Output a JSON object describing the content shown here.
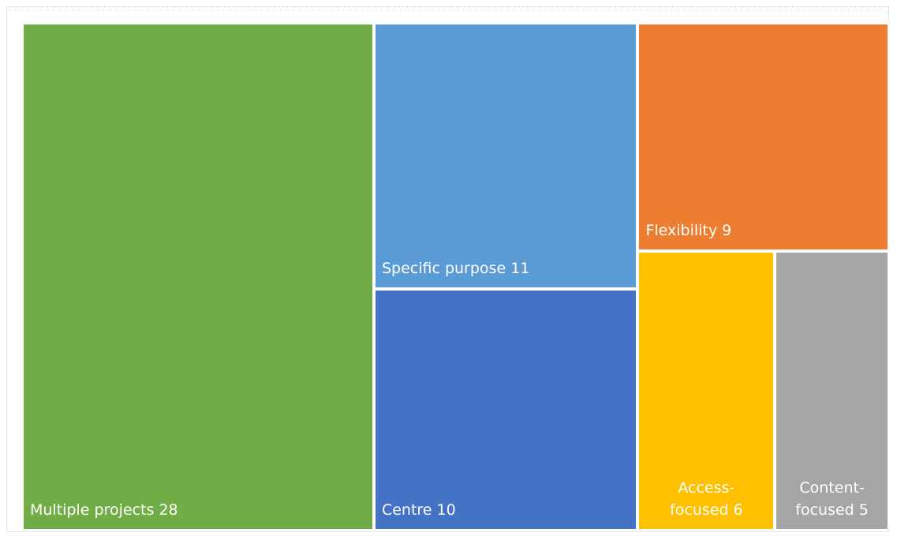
{
  "chart_data": {
    "type": "treemap",
    "categories": [
      "Multiple projects",
      "Specific purpose",
      "Centre",
      "Flexibility",
      "Access-focused",
      "Content-focused"
    ],
    "values": [
      28,
      11,
      10,
      9,
      6,
      5
    ],
    "colors": [
      "#70ad47",
      "#5b9bd5",
      "#4472c4",
      "#ed7d31",
      "#ffc000",
      "#a5a5a5"
    ]
  }
}
